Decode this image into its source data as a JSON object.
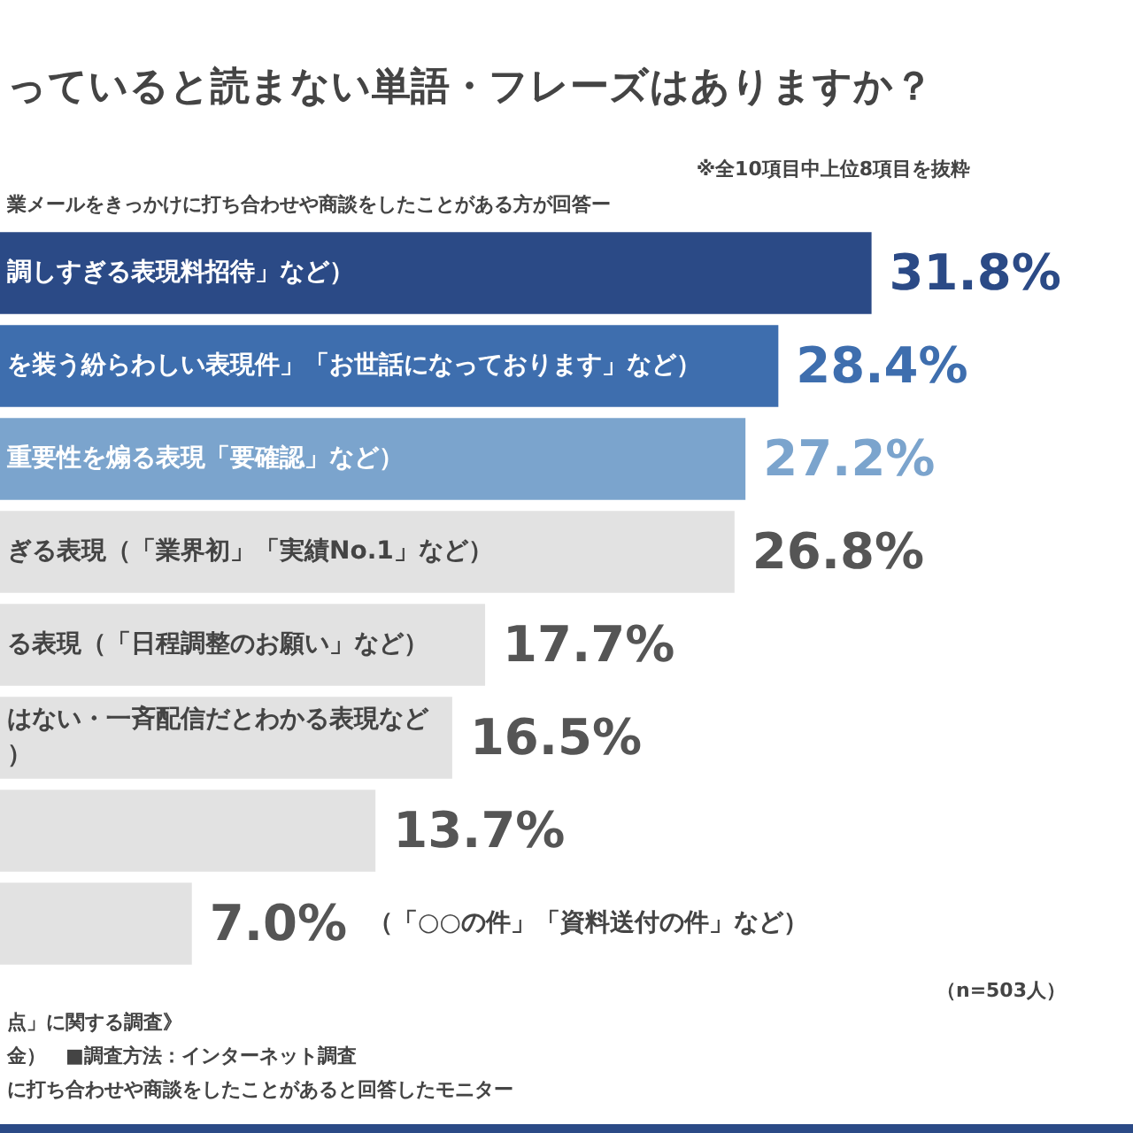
{
  "chart_data": {
    "type": "bar",
    "orientation": "horizontal",
    "title": "っていると読まない単語・フレーズはありますか？",
    "subtitle": "業メールをきっかけに打ち合わせや商談をしたことがある方が回答ー",
    "categories": [
      "調しすぎる表現料招待」など）",
      "を装う紛らわしい表現件」「お世話になっております」など）",
      "重要性を煽る表現「要確認」など）",
      "ぎる表現（「業界初」「実績No.1」など）",
      "る表現（「日程調整のお願い」など）",
      "はない・一斉配信だとわかる表現など）",
      null,
      "（「○○の件」「資料送付の件」など）"
    ],
    "values": [
      31.8,
      28.4,
      27.2,
      26.8,
      17.7,
      16.5,
      13.7,
      7.0
    ],
    "colors": [
      "#2b4a86",
      "#3e6eae",
      "#7ba4cd",
      "#e2e2e2",
      "#e2e2e2",
      "#e2e2e2",
      "#e2e2e2",
      "#e2e2e2"
    ],
    "value_labels": [
      "31.8%",
      "28.4%",
      "27.2%",
      "26.8%",
      "17.7%",
      "16.5%",
      "13.7%",
      "7.0%"
    ],
    "annotations": [
      "※全10項目中上位8項目を抜粋",
      "（n=503人）",
      "点」に関する調査》",
      "金）　■調査方法：インターネット調査",
      "に打ち合わせや商談をしたことがあると回答したモニター"
    ]
  }
}
